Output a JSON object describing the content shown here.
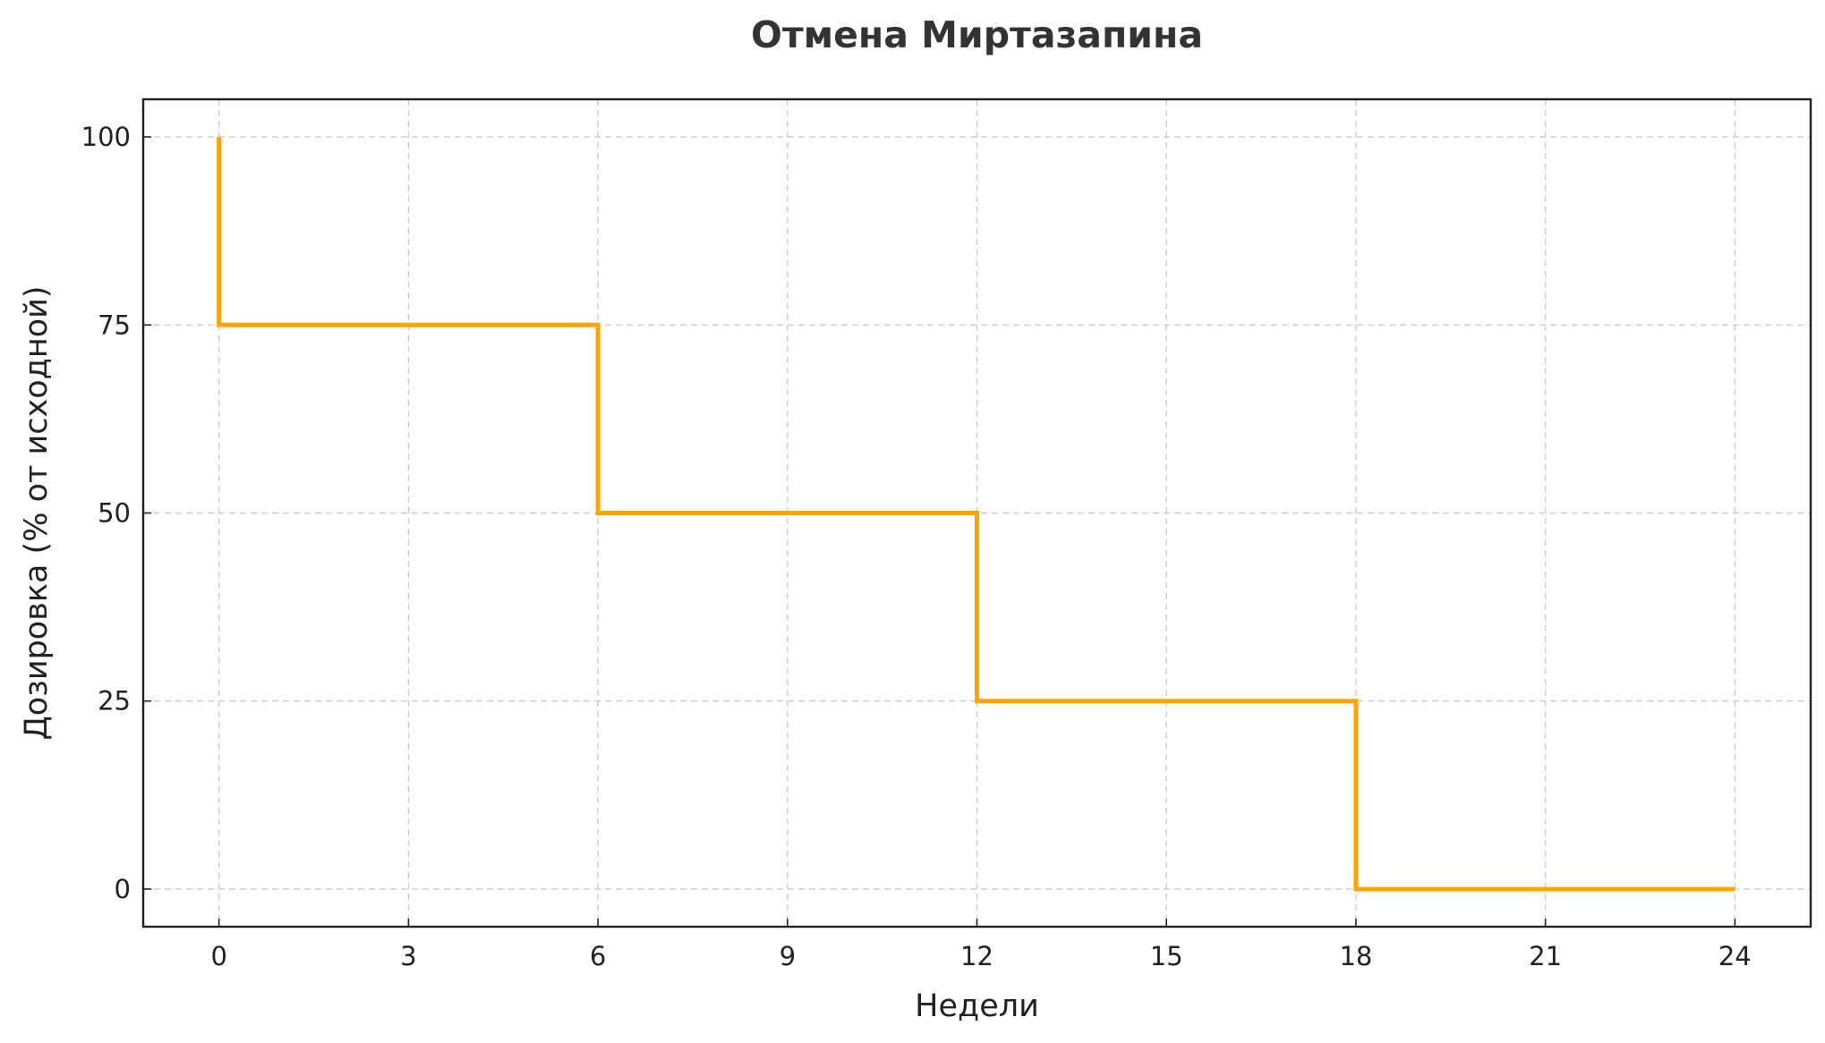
{
  "chart_data": {
    "type": "line",
    "step": "post",
    "title": "Отмена Миртазапина",
    "xlabel": "Недели",
    "ylabel": "Дозировка (% от исходной)",
    "xlim": [
      -1.2,
      25.2
    ],
    "ylim": [
      -5,
      105
    ],
    "xticks": [
      0,
      3,
      6,
      9,
      12,
      15,
      18,
      21,
      24
    ],
    "yticks": [
      0,
      25,
      50,
      75,
      100
    ],
    "xtick_labels": [
      "0",
      "3",
      "6",
      "9",
      "12",
      "15",
      "18",
      "21",
      "24"
    ],
    "ytick_labels": [
      "0",
      "25",
      "50",
      "75",
      "100"
    ],
    "grid": true,
    "series": [
      {
        "color": "#ffa500",
        "points": [
          {
            "x": 0,
            "y": 100
          },
          {
            "x": 0,
            "y": 75
          },
          {
            "x": 6,
            "y": 75
          },
          {
            "x": 6,
            "y": 50
          },
          {
            "x": 12,
            "y": 50
          },
          {
            "x": 12,
            "y": 25
          },
          {
            "x": 18,
            "y": 25
          },
          {
            "x": 18,
            "y": 0
          },
          {
            "x": 24,
            "y": 0
          }
        ]
      }
    ]
  }
}
